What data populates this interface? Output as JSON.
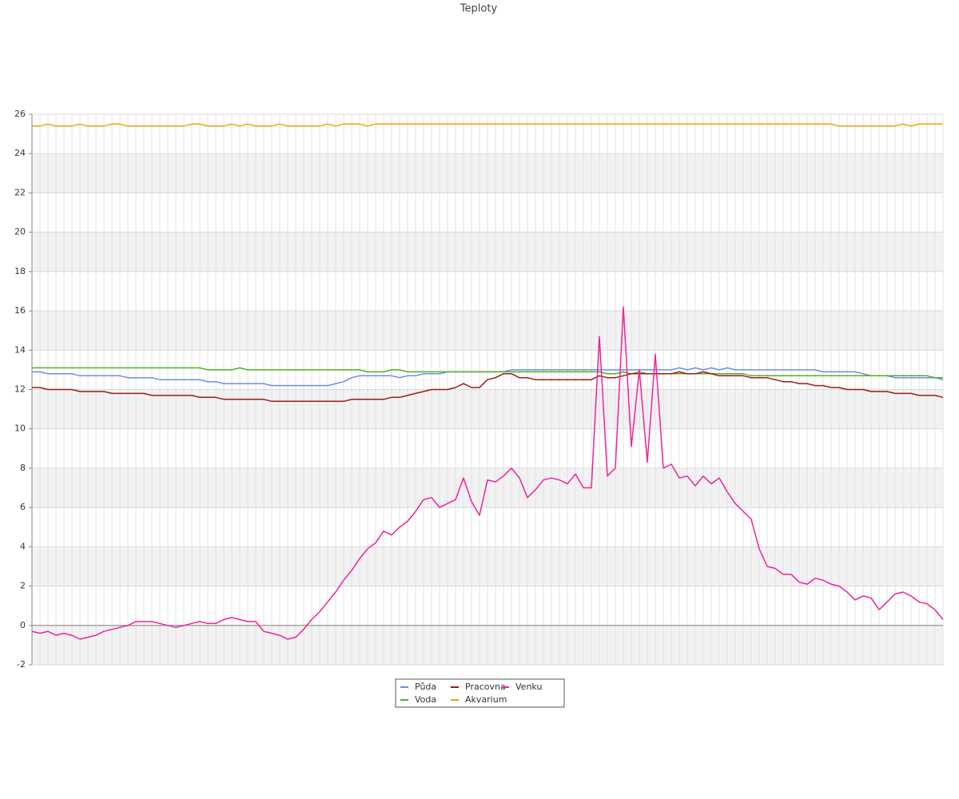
{
  "chart_data": {
    "type": "line",
    "title": "Teploty",
    "categories": [
      null,
      null,
      null,
      null,
      null,
      null,
      null,
      null,
      null,
      null,
      null,
      null,
      null,
      null,
      null,
      null,
      null,
      null,
      null,
      null,
      null,
      null,
      null,
      null,
      null,
      null,
      null,
      null,
      null,
      null,
      null,
      null,
      null,
      null,
      null,
      null,
      null,
      null,
      null,
      null,
      null,
      null,
      null,
      null,
      null,
      null,
      null,
      null,
      null,
      null,
      null,
      null,
      null,
      null,
      null,
      null,
      null,
      null,
      null,
      null,
      null,
      null,
      null,
      null,
      null,
      null,
      null,
      null,
      null,
      null,
      null,
      null,
      null,
      null,
      null,
      null,
      null,
      null,
      null,
      null,
      null,
      null,
      null,
      null,
      null,
      null,
      null,
      null,
      null,
      null,
      null,
      null,
      null,
      null,
      null,
      null,
      null,
      null,
      null,
      null,
      null,
      null,
      null,
      null,
      null,
      null,
      null,
      null,
      null,
      null,
      null,
      null,
      null,
      null,
      null
    ],
    "ylim": [
      -2,
      26
    ],
    "yticks": [
      -2,
      0,
      2,
      4,
      6,
      8,
      10,
      12,
      14,
      16,
      18,
      20,
      22,
      24,
      26
    ],
    "grid": true,
    "series": [
      {
        "name": "Půda",
        "color": "#6b8ee8",
        "values": [
          12.9,
          12.9,
          12.8,
          12.8,
          12.8,
          12.8,
          12.7,
          12.7,
          12.7,
          12.7,
          12.7,
          12.7,
          12.6,
          12.6,
          12.6,
          12.6,
          12.5,
          12.5,
          12.5,
          12.5,
          12.5,
          12.5,
          12.4,
          12.4,
          12.3,
          12.3,
          12.3,
          12.3,
          12.3,
          12.3,
          12.2,
          12.2,
          12.2,
          12.2,
          12.2,
          12.2,
          12.2,
          12.2,
          12.3,
          12.4,
          12.6,
          12.7,
          12.7,
          12.7,
          12.7,
          12.7,
          12.6,
          12.7,
          12.7,
          12.8,
          12.8,
          12.8,
          12.9,
          12.9,
          12.9,
          12.9,
          12.9,
          12.9,
          12.9,
          12.9,
          13.0,
          13.0,
          13.0,
          13.0,
          13.0,
          13.0,
          13.0,
          13.0,
          13.0,
          13.0,
          13.0,
          13.0,
          13.0,
          13.0,
          13.0,
          13.0,
          13.0,
          13.0,
          13.0,
          13.0,
          13.0,
          13.1,
          13.0,
          13.1,
          13.0,
          13.1,
          13.0,
          13.1,
          13.0,
          13.0,
          13.0,
          13.0,
          13.0,
          13.0,
          13.0,
          13.0,
          13.0,
          13.0,
          13.0,
          12.9,
          12.9,
          12.9,
          12.9,
          12.9,
          12.8,
          12.7,
          12.7,
          12.7,
          12.6,
          12.6,
          12.6,
          12.6,
          12.6,
          12.6,
          12.5
        ]
      },
      {
        "name": "Voda",
        "color": "#52b01e",
        "values": [
          13.1,
          13.1,
          13.1,
          13.1,
          13.1,
          13.1,
          13.1,
          13.1,
          13.1,
          13.1,
          13.1,
          13.1,
          13.1,
          13.1,
          13.1,
          13.1,
          13.1,
          13.1,
          13.1,
          13.1,
          13.1,
          13.1,
          13.0,
          13.0,
          13.0,
          13.0,
          13.1,
          13.0,
          13.0,
          13.0,
          13.0,
          13.0,
          13.0,
          13.0,
          13.0,
          13.0,
          13.0,
          13.0,
          13.0,
          13.0,
          13.0,
          13.0,
          12.9,
          12.9,
          12.9,
          13.0,
          13.0,
          12.9,
          12.9,
          12.9,
          12.9,
          12.9,
          12.9,
          12.9,
          12.9,
          12.9,
          12.9,
          12.9,
          12.9,
          12.9,
          12.9,
          12.9,
          12.9,
          12.9,
          12.9,
          12.9,
          12.9,
          12.9,
          12.9,
          12.9,
          12.9,
          12.9,
          12.8,
          12.8,
          12.9,
          12.8,
          12.9,
          12.8,
          12.8,
          12.8,
          12.8,
          12.8,
          12.8,
          12.8,
          12.8,
          12.8,
          12.8,
          12.8,
          12.8,
          12.8,
          12.7,
          12.7,
          12.7,
          12.7,
          12.7,
          12.7,
          12.7,
          12.7,
          12.7,
          12.7,
          12.7,
          12.7,
          12.7,
          12.7,
          12.7,
          12.7,
          12.7,
          12.7,
          12.7,
          12.7,
          12.7,
          12.7,
          12.7,
          12.6,
          12.6
        ]
      },
      {
        "name": "Pracovna",
        "color": "#a01818",
        "values": [
          12.1,
          12.1,
          12.0,
          12.0,
          12.0,
          12.0,
          11.9,
          11.9,
          11.9,
          11.9,
          11.8,
          11.8,
          11.8,
          11.8,
          11.8,
          11.7,
          11.7,
          11.7,
          11.7,
          11.7,
          11.7,
          11.6,
          11.6,
          11.6,
          11.5,
          11.5,
          11.5,
          11.5,
          11.5,
          11.5,
          11.4,
          11.4,
          11.4,
          11.4,
          11.4,
          11.4,
          11.4,
          11.4,
          11.4,
          11.4,
          11.5,
          11.5,
          11.5,
          11.5,
          11.5,
          11.6,
          11.6,
          11.7,
          11.8,
          11.9,
          12.0,
          12.0,
          12.0,
          12.1,
          12.3,
          12.1,
          12.1,
          12.5,
          12.6,
          12.8,
          12.8,
          12.6,
          12.6,
          12.5,
          12.5,
          12.5,
          12.5,
          12.5,
          12.5,
          12.5,
          12.5,
          12.7,
          12.6,
          12.6,
          12.7,
          12.8,
          12.8,
          12.8,
          12.8,
          12.8,
          12.8,
          12.9,
          12.8,
          12.8,
          12.9,
          12.8,
          12.7,
          12.7,
          12.7,
          12.7,
          12.6,
          12.6,
          12.6,
          12.5,
          12.4,
          12.4,
          12.3,
          12.3,
          12.2,
          12.2,
          12.1,
          12.1,
          12.0,
          12.0,
          12.0,
          11.9,
          11.9,
          11.9,
          11.8,
          11.8,
          11.8,
          11.7,
          11.7,
          11.7,
          11.6
        ]
      },
      {
        "name": "Akvarium",
        "color": "#f5a000",
        "values": [
          25.4,
          25.4,
          25.5,
          25.4,
          25.4,
          25.4,
          25.5,
          25.4,
          25.4,
          25.4,
          25.5,
          25.5,
          25.4,
          25.4,
          25.4,
          25.4,
          25.4,
          25.4,
          25.4,
          25.4,
          25.5,
          25.5,
          25.4,
          25.4,
          25.4,
          25.5,
          25.4,
          25.5,
          25.4,
          25.4,
          25.4,
          25.5,
          25.4,
          25.4,
          25.4,
          25.4,
          25.4,
          25.5,
          25.4,
          25.5,
          25.5,
          25.5,
          25.4,
          25.5,
          25.5,
          25.5,
          25.5,
          25.5,
          25.5,
          25.5,
          25.5,
          25.5,
          25.5,
          25.5,
          25.5,
          25.5,
          25.5,
          25.5,
          25.5,
          25.5,
          25.5,
          25.5,
          25.5,
          25.5,
          25.5,
          25.5,
          25.5,
          25.5,
          25.5,
          25.5,
          25.5,
          25.5,
          25.5,
          25.5,
          25.5,
          25.5,
          25.5,
          25.5,
          25.5,
          25.5,
          25.5,
          25.5,
          25.5,
          25.5,
          25.5,
          25.5,
          25.5,
          25.5,
          25.5,
          25.5,
          25.5,
          25.5,
          25.5,
          25.5,
          25.5,
          25.5,
          25.5,
          25.5,
          25.5,
          25.5,
          25.5,
          25.4,
          25.4,
          25.4,
          25.4,
          25.4,
          25.4,
          25.4,
          25.4,
          25.5,
          25.4,
          25.5,
          25.5,
          25.5,
          25.5
        ]
      },
      {
        "name": "Venku",
        "color": "#f0229c",
        "values": [
          -0.3,
          -0.4,
          -0.3,
          -0.5,
          -0.4,
          -0.5,
          -0.7,
          -0.6,
          -0.5,
          -0.3,
          -0.2,
          -0.1,
          0.0,
          0.2,
          0.2,
          0.2,
          0.1,
          0.0,
          -0.1,
          0.0,
          0.1,
          0.2,
          0.1,
          0.1,
          0.3,
          0.4,
          0.3,
          0.2,
          0.2,
          -0.3,
          -0.4,
          -0.5,
          -0.7,
          -0.6,
          -0.2,
          0.3,
          0.7,
          1.2,
          1.7,
          2.3,
          2.8,
          3.4,
          3.9,
          4.2,
          4.8,
          4.6,
          5.0,
          5.3,
          5.8,
          6.4,
          6.5,
          6.0,
          6.2,
          6.4,
          7.5,
          6.3,
          5.6,
          7.4,
          7.3,
          7.6,
          8.0,
          7.5,
          6.5,
          6.9,
          7.4,
          7.5,
          7.4,
          7.2,
          7.7,
          7.0,
          7.0,
          14.7,
          7.6,
          8.0,
          16.2,
          9.1,
          13.0,
          8.3,
          13.8,
          8.0,
          8.2,
          7.5,
          7.6,
          7.1,
          7.6,
          7.2,
          7.5,
          6.8,
          6.2,
          5.8,
          5.4,
          3.9,
          3.0,
          2.9,
          2.6,
          2.6,
          2.2,
          2.1,
          2.4,
          2.3,
          2.1,
          2.0,
          1.7,
          1.3,
          1.5,
          1.4,
          0.8,
          1.2,
          1.6,
          1.7,
          1.5,
          1.2,
          1.1,
          0.8,
          0.3
        ]
      }
    ]
  }
}
